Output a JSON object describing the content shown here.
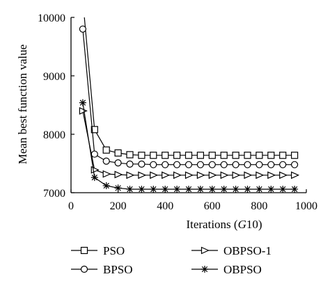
{
  "chart_data": {
    "type": "line",
    "xlabel": "Iterations (",
    "xlabel_italic": "G",
    "xlabel_suffix": "10)",
    "ylabel": "Mean best function value",
    "xlim": [
      0,
      1000
    ],
    "ylim": [
      7000,
      10000
    ],
    "xticks": [
      0,
      200,
      400,
      600,
      800,
      1000
    ],
    "yticks": [
      7000,
      8000,
      9000,
      10000
    ],
    "grid": false,
    "legend_position": "bottom",
    "x": [
      50,
      100,
      150,
      200,
      250,
      300,
      350,
      400,
      450,
      500,
      550,
      600,
      650,
      700,
      750,
      800,
      850,
      900,
      950
    ],
    "series": [
      {
        "name": "PSO",
        "marker": "square",
        "start": [
          50,
          10300
        ],
        "values": [
          10300,
          8080,
          7730,
          7680,
          7650,
          7640,
          7640,
          7640,
          7640,
          7640,
          7640,
          7640,
          7640,
          7640,
          7640,
          7640,
          7640,
          7640,
          7640
        ]
      },
      {
        "name": "BPSO",
        "marker": "circle",
        "values": [
          9800,
          7660,
          7540,
          7510,
          7490,
          7490,
          7480,
          7480,
          7480,
          7480,
          7480,
          7480,
          7480,
          7480,
          7480,
          7480,
          7480,
          7480,
          7480
        ]
      },
      {
        "name": "OBPSO-1",
        "marker": "triangle-right",
        "values": [
          8400,
          7390,
          7320,
          7310,
          7300,
          7300,
          7300,
          7300,
          7300,
          7300,
          7300,
          7300,
          7300,
          7300,
          7300,
          7300,
          7300,
          7300,
          7300
        ]
      },
      {
        "name": "OBPSO",
        "marker": "asterisk",
        "values": [
          8540,
          7260,
          7120,
          7080,
          7060,
          7060,
          7060,
          7060,
          7060,
          7060,
          7060,
          7060,
          7060,
          7060,
          7060,
          7060,
          7060,
          7060,
          7060
        ]
      }
    ]
  }
}
